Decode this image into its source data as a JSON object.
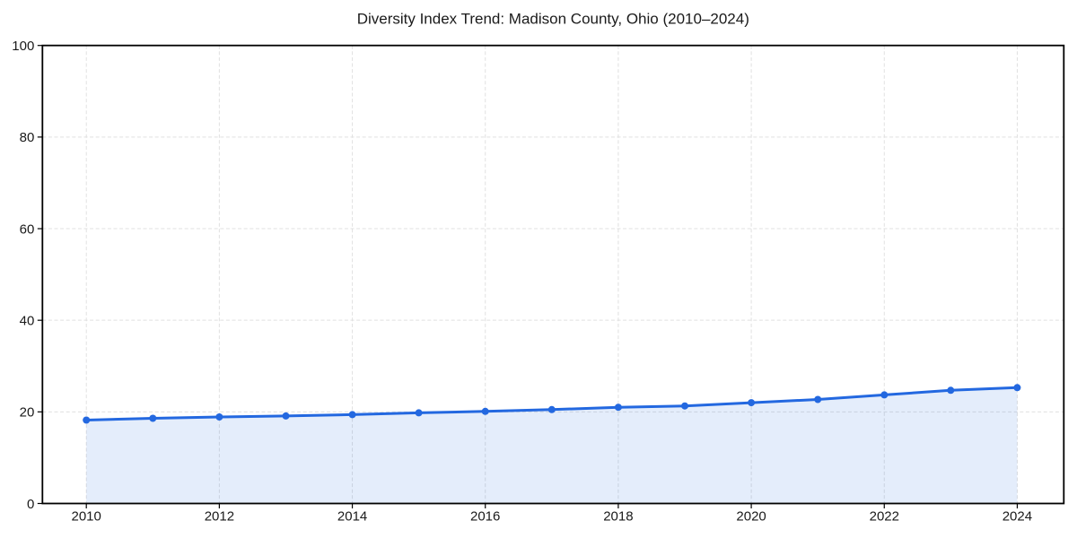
{
  "chart_data": {
    "type": "line",
    "title": "Diversity Index Trend: Madison County, Ohio (2010–2024)",
    "x": [
      2010,
      2011,
      2012,
      2013,
      2014,
      2015,
      2016,
      2017,
      2018,
      2019,
      2020,
      2021,
      2022,
      2023,
      2024
    ],
    "values": [
      18.2,
      18.6,
      18.9,
      19.1,
      19.4,
      19.8,
      20.1,
      20.5,
      21.0,
      21.3,
      22.0,
      22.7,
      23.7,
      24.7,
      25.3
    ],
    "xlabel": "",
    "ylabel": "",
    "xlim": [
      2009.34,
      2024.7
    ],
    "ylim": [
      0,
      100
    ],
    "xticks": [
      2010,
      2012,
      2014,
      2016,
      2018,
      2020,
      2022,
      2024
    ],
    "yticks": [
      0,
      20,
      40,
      60,
      80,
      100
    ],
    "grid": "dashed",
    "legend": "none",
    "marker": "circle",
    "colors": {
      "line": "#2368e0",
      "marker": "#2368e0",
      "fill": "rgba(35, 104, 224, 0.12)",
      "grid": "#e0e0e0",
      "spine": "#000000",
      "tick": "#000000",
      "text": "#1a1a1a",
      "background": "#ffffff"
    }
  }
}
